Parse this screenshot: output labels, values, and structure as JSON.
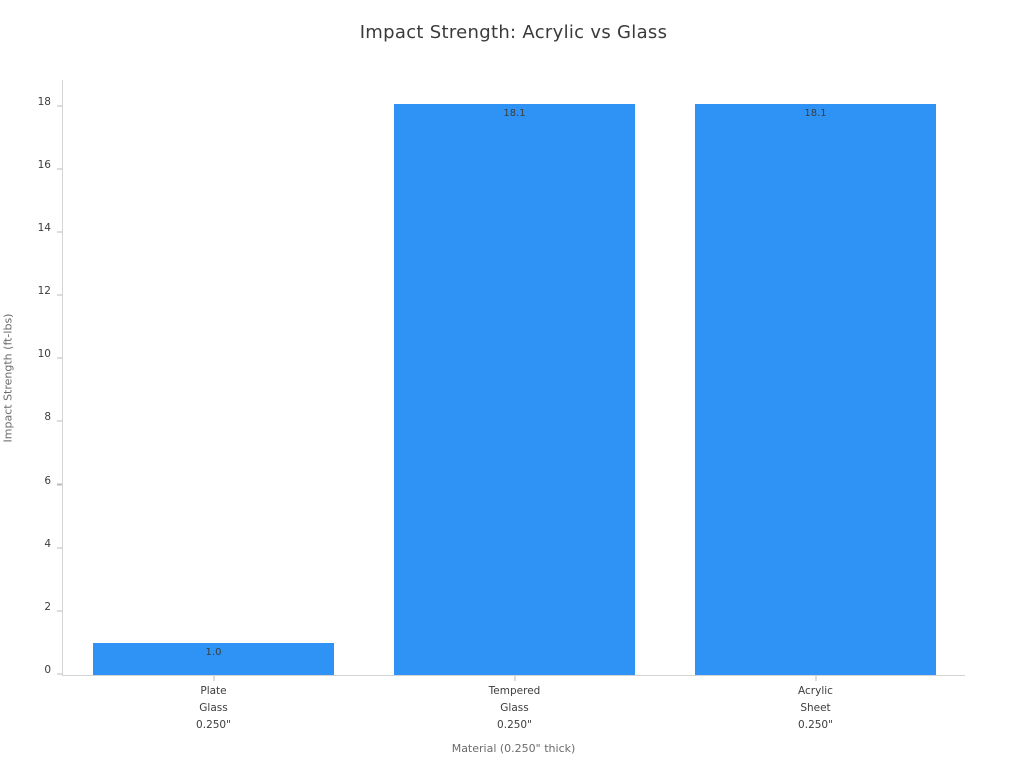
{
  "chart_data": {
    "type": "bar",
    "title": "Impact Strength: Acrylic vs Glass",
    "xlabel": "Material (0.250\" thick)",
    "ylabel": "Impact Strength (ft-lbs)",
    "categories": [
      [
        "Plate",
        "Glass",
        "0.250\""
      ],
      [
        "Tempered",
        "Glass",
        "0.250\""
      ],
      [
        "Acrylic",
        "Sheet",
        "0.250\""
      ]
    ],
    "values": [
      1.0,
      18.1,
      18.1
    ],
    "value_labels": [
      "1.0",
      "18.1",
      "18.1"
    ],
    "yticks": [
      0,
      2,
      4,
      6,
      8,
      10,
      12,
      14,
      16,
      18
    ],
    "ylim": [
      0,
      18.88
    ],
    "bar_width_fraction": 0.8,
    "grid": false,
    "legend": "none",
    "bar_color": "#2e93f5",
    "axis_line_color": "#d4d4d4",
    "tick_label_color": "#3d3d3d",
    "axis_title_color": "#6b6b6b",
    "title_color": "#3a3a3a",
    "background_color": "#ffffff"
  }
}
